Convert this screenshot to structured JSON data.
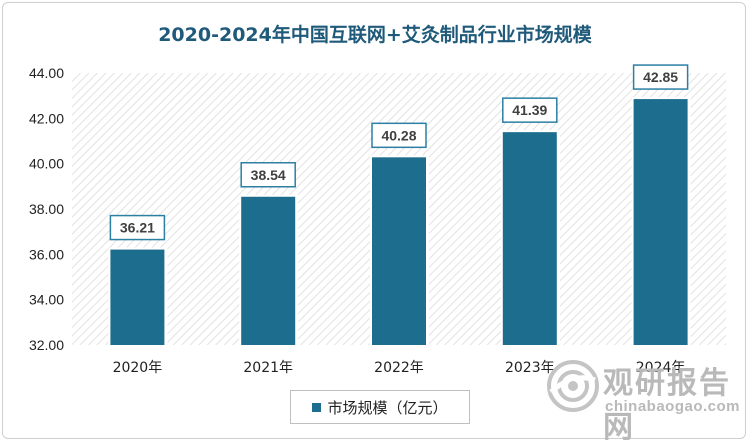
{
  "chart_data": {
    "type": "bar",
    "title": "2020-2024年中国互联网+艾灸制品行业市场规模",
    "categories": [
      "2020年",
      "2021年",
      "2022年",
      "2023年",
      "2024年"
    ],
    "series": [
      {
        "name": "市场规模（亿元）",
        "values": [
          36.21,
          38.54,
          40.28,
          41.39,
          42.85
        ]
      }
    ],
    "data_labels": [
      "36.21",
      "38.54",
      "40.28",
      "41.39",
      "42.85"
    ],
    "ylim": [
      32,
      44
    ],
    "yticks": [
      "32.00",
      "34.00",
      "36.00",
      "38.00",
      "40.00",
      "42.00",
      "44.00"
    ],
    "ytick_values": [
      32,
      34,
      36,
      38,
      40,
      42,
      44
    ],
    "xlabel": "",
    "ylabel": "",
    "grid": false,
    "legend_position": "bottom",
    "bar_color": "#1d6d8f",
    "label_border_color": "#2b7fa3"
  },
  "watermark": {
    "brand_cn": "观研报告网",
    "brand_en": "chinabaogao.com"
  }
}
